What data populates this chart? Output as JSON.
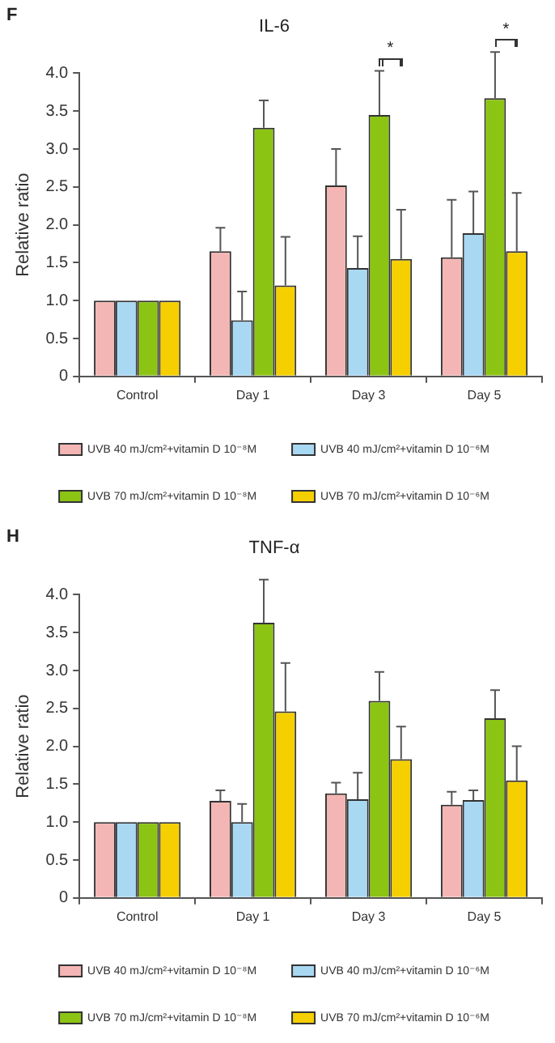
{
  "chart_data": [
    {
      "type": "bar",
      "title": "IL-6",
      "ylabel": "Relative ratio",
      "categories": [
        "Control",
        "Day 1",
        "Day 3",
        "Day 5"
      ],
      "series": [
        {
          "name": "UVB 40 mJ/cm²+vitamin D 10⁻⁸M",
          "color": "#f4b6b4",
          "values": [
            1,
            1.65,
            2.52,
            1.57
          ],
          "errors": [
            null,
            [
              1.65,
              1.96
            ],
            [
              2.52,
              3.0
            ],
            [
              1.57,
              2.33
            ]
          ]
        },
        {
          "name": "UVB 40 mJ/cm²+vitamin D 10⁻⁶M",
          "color": "#a9d8f2",
          "values": [
            1,
            0.74,
            1.43,
            1.89
          ],
          "errors": [
            null,
            [
              0.74,
              1.12
            ],
            [
              1.43,
              1.85
            ],
            [
              1.89,
              2.44
            ]
          ]
        },
        {
          "name": "UVB 70 mJ/cm²+vitamin D 10⁻⁸M",
          "color": "#8cc414",
          "values": [
            1,
            3.28,
            3.45,
            3.67
          ],
          "errors": [
            null,
            [
              3.28,
              3.64
            ],
            [
              3.45,
              4.03
            ],
            [
              3.67,
              4.28
            ]
          ]
        },
        {
          "name": "UVB 70 mJ/cm²+vitamin D 10⁻⁶M",
          "color": "#f5cf00",
          "values": [
            1,
            1.2,
            1.55,
            1.65
          ],
          "errors": [
            null,
            [
              1.2,
              1.84
            ],
            [
              1.55,
              2.2
            ],
            [
              1.65,
              2.42
            ]
          ]
        }
      ],
      "ylim": [
        0,
        4
      ],
      "yticks": [
        0,
        {
          "value": 0.5,
          "label": "0.5"
        },
        {
          "value": 1,
          "label": "1.0"
        },
        {
          "value": 1.5,
          "label": "1.5"
        },
        {
          "value": 2,
          "label": "2.0"
        },
        {
          "value": 2.5,
          "label": "2.5"
        },
        {
          "value": 3,
          "label": "3.0"
        },
        {
          "value": 3.5,
          "label": "3.5"
        },
        {
          "value": 4,
          "label": "4.0"
        }
      ],
      "legend": "bottom",
      "annotations": [
        "F",
        "*",
        "*"
      ]
    },
    {
      "type": "bar",
      "title": "TNF-α",
      "ylabel": "Relative ratio",
      "categories": [
        "Control",
        "Day 1",
        "Day 3",
        "Day 5"
      ],
      "series": [
        {
          "name": "UVB 40 mJ/cm²+vitamin D 10⁻⁸M",
          "color": "#f4b6b4",
          "values": [
            1,
            1.28,
            1.38,
            1.23
          ],
          "errors": [
            null,
            [
              1.28,
              1.42
            ],
            [
              1.38,
              1.52
            ],
            [
              1.23,
              1.4
            ]
          ]
        },
        {
          "name": "UVB 40 mJ/cm²+vitamin D 10⁻⁶M",
          "color": "#a9d8f2",
          "values": [
            1,
            1.0,
            1.3,
            1.29
          ],
          "errors": [
            null,
            [
              1.0,
              1.24
            ],
            [
              1.3,
              1.65
            ],
            [
              1.29,
              1.42
            ]
          ]
        },
        {
          "name": "UVB 70 mJ/cm²+vitamin D 10⁻⁸M",
          "color": "#8cc414",
          "values": [
            1,
            3.63,
            2.6,
            2.37
          ],
          "errors": [
            null,
            [
              3.63,
              4.2
            ],
            [
              2.6,
              2.98
            ],
            [
              2.37,
              2.74
            ]
          ]
        },
        {
          "name": "UVB 70 mJ/cm²+vitamin D 10⁻⁶M",
          "color": "#f5cf00",
          "values": [
            1,
            2.46,
            1.83,
            1.55
          ],
          "errors": [
            null,
            [
              2.46,
              3.1
            ],
            [
              1.83,
              2.26
            ],
            [
              1.55,
              2.0
            ]
          ]
        }
      ],
      "ylim": [
        0,
        4
      ],
      "yticks": [
        0,
        {
          "value": 0.5,
          "label": "0.5"
        },
        {
          "value": 1,
          "label": "1.0"
        },
        {
          "value": 1.5,
          "label": "1.5"
        },
        {
          "value": 2,
          "label": "2.0"
        },
        {
          "value": 2.5,
          "label": "2.5"
        },
        {
          "value": 3,
          "label": "3.0"
        },
        {
          "value": 3.5,
          "label": "3.5"
        },
        {
          "value": 4,
          "label": "4.0"
        }
      ],
      "legend": "bottom",
      "annotations": [
        "H"
      ]
    }
  ]
}
